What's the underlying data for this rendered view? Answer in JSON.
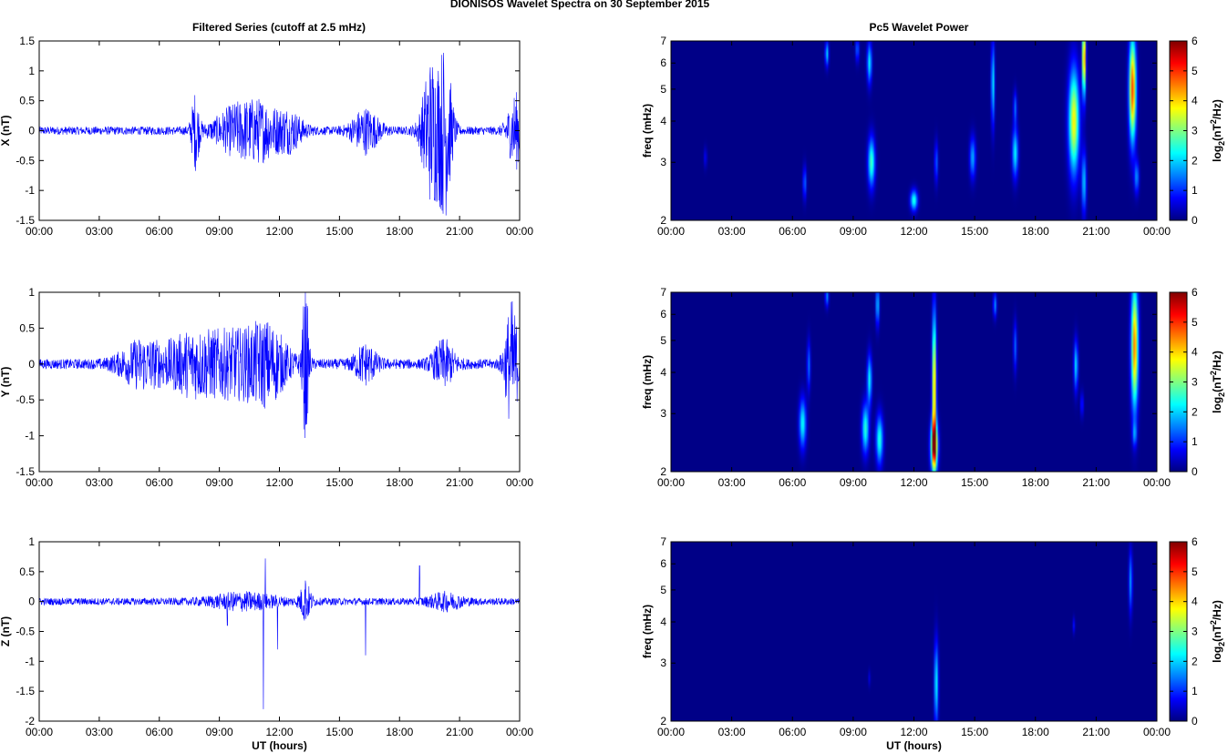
{
  "figure": {
    "title": "DIONISOS Wavelet Spectra on 30 September 2015",
    "left_column_title": "Filtered Series (cutoff at 2.5 mHz)",
    "right_column_title": "Pc5 Wavelet Power",
    "xlabel": "UT (hours)"
  },
  "chart_data": [
    {
      "type": "line",
      "panel": "X",
      "ylabel": "X (nT)",
      "xlabel": "",
      "x_ticks": [
        "00:00",
        "03:00",
        "06:00",
        "09:00",
        "12:00",
        "15:00",
        "18:00",
        "21:00",
        "00:00"
      ],
      "x_range_hours": [
        0,
        24
      ],
      "ylim": [
        -1.5,
        1.5
      ],
      "y_ticks": [
        "1.5",
        "1",
        "0.5",
        "0",
        "-0.5",
        "-1",
        "-1.5"
      ],
      "series_color": "#0000ff",
      "base_amplitude": 0.07,
      "bursts": [
        [
          7.8,
          0.15,
          0.6
        ],
        [
          9.9,
          0.8,
          0.4
        ],
        [
          11.2,
          0.6,
          0.35
        ],
        [
          12.5,
          0.5,
          0.3
        ],
        [
          16.3,
          0.5,
          0.35
        ],
        [
          19.6,
          0.35,
          1.2
        ],
        [
          20.3,
          0.25,
          1.25
        ],
        [
          23.8,
          0.3,
          0.6
        ]
      ]
    },
    {
      "type": "line",
      "panel": "Y",
      "ylabel": "Y (nT)",
      "xlabel": "",
      "x_ticks": [
        "00:00",
        "03:00",
        "06:00",
        "09:00",
        "12:00",
        "15:00",
        "18:00",
        "21:00",
        "00:00"
      ],
      "x_range_hours": [
        0,
        24
      ],
      "ylim": [
        -1.5,
        1
      ],
      "y_ticks": [
        "1",
        "0.5",
        "0",
        "-0.5",
        "-1",
        "-1.5"
      ],
      "series_color": "#0000ff",
      "base_amplitude": 0.07,
      "bursts": [
        [
          5.1,
          0.8,
          0.3
        ],
        [
          7.5,
          1.0,
          0.35
        ],
        [
          9.8,
          1.2,
          0.4
        ],
        [
          11.5,
          0.7,
          0.4
        ],
        [
          13.3,
          0.12,
          1.05
        ],
        [
          16.3,
          0.4,
          0.25
        ],
        [
          20.2,
          0.4,
          0.3
        ],
        [
          23.6,
          0.25,
          0.85
        ]
      ]
    },
    {
      "type": "line",
      "panel": "Z",
      "ylabel": "Z (nT)",
      "xlabel": "UT (hours)",
      "x_ticks": [
        "00:00",
        "03:00",
        "06:00",
        "09:00",
        "12:00",
        "15:00",
        "18:00",
        "21:00",
        "00:00"
      ],
      "x_range_hours": [
        0,
        24
      ],
      "ylim": [
        -2,
        1
      ],
      "y_ticks": [
        "1",
        "0.5",
        "0",
        "-0.5",
        "-1",
        "-1.5",
        "-2"
      ],
      "series_color": "#0000ff",
      "base_amplitude": 0.06,
      "bursts": [
        [
          10.2,
          1.2,
          0.12
        ],
        [
          13.3,
          0.2,
          0.3
        ],
        [
          20.3,
          0.6,
          0.12
        ]
      ],
      "spikes": [
        [
          11.2,
          -1.8
        ],
        [
          11.3,
          0.72
        ],
        [
          11.9,
          -0.8
        ],
        [
          9.4,
          -0.4
        ],
        [
          16.3,
          -0.9
        ],
        [
          19.0,
          0.6
        ],
        [
          13.3,
          0.35
        ]
      ]
    },
    {
      "type": "heatmap",
      "panel": "X",
      "ylabel": "freq (mHz)",
      "xlabel": "",
      "x_ticks": [
        "00:00",
        "03:00",
        "06:00",
        "09:00",
        "12:00",
        "15:00",
        "18:00",
        "21:00",
        "00:00"
      ],
      "y_scale": "log",
      "ylim": [
        2,
        7
      ],
      "y_ticks": [
        "7",
        "6",
        "5",
        "4",
        "3",
        "2"
      ],
      "colorbar_label": "log2(nT^2/Hz)",
      "colorbar_ticks": [
        "6",
        "5",
        "4",
        "3",
        "2",
        "1",
        "0"
      ],
      "clim": [
        0,
        6
      ],
      "blobs": [
        [
          6.6,
          0.06,
          2.6,
          0.08,
          1.6
        ],
        [
          7.7,
          0.06,
          6.4,
          0.06,
          2.3
        ],
        [
          9.2,
          0.06,
          6.6,
          0.06,
          1.6
        ],
        [
          9.9,
          0.12,
          3.0,
          0.12,
          3.0
        ],
        [
          9.8,
          0.08,
          6.0,
          0.1,
          2.5
        ],
        [
          12.0,
          0.12,
          2.3,
          0.05,
          2.8
        ],
        [
          13.1,
          0.06,
          3.0,
          0.1,
          1.5
        ],
        [
          14.9,
          0.1,
          3.1,
          0.1,
          2.0
        ],
        [
          15.9,
          0.06,
          5.2,
          0.2,
          2.5
        ],
        [
          17.0,
          0.1,
          3.2,
          0.12,
          2.5
        ],
        [
          17.0,
          0.06,
          4.4,
          0.08,
          1.5
        ],
        [
          19.9,
          0.18,
          4.0,
          0.25,
          4.3
        ],
        [
          20.4,
          0.06,
          6.2,
          0.18,
          5.5
        ],
        [
          20.4,
          0.08,
          2.6,
          0.15,
          2.2
        ],
        [
          22.8,
          0.12,
          5.0,
          0.25,
          5.6
        ],
        [
          23.0,
          0.08,
          2.7,
          0.08,
          1.8
        ],
        [
          1.7,
          0.05,
          3.1,
          0.05,
          0.8
        ]
      ]
    },
    {
      "type": "heatmap",
      "panel": "Y",
      "ylabel": "freq (mHz)",
      "xlabel": "",
      "x_ticks": [
        "00:00",
        "03:00",
        "06:00",
        "09:00",
        "12:00",
        "15:00",
        "18:00",
        "21:00",
        "00:00"
      ],
      "y_scale": "log",
      "ylim": [
        2,
        7
      ],
      "y_ticks": [
        "7",
        "6",
        "5",
        "4",
        "3",
        "2"
      ],
      "colorbar_label": "log2(nT^2/Hz)",
      "colorbar_ticks": [
        "6",
        "5",
        "4",
        "3",
        "2",
        "1",
        "0"
      ],
      "clim": [
        0,
        6
      ],
      "blobs": [
        [
          6.5,
          0.12,
          2.8,
          0.12,
          2.6
        ],
        [
          6.8,
          0.06,
          4.2,
          0.12,
          1.6
        ],
        [
          7.7,
          0.06,
          6.8,
          0.05,
          1.8
        ],
        [
          9.6,
          0.12,
          2.7,
          0.12,
          2.8
        ],
        [
          9.8,
          0.08,
          3.8,
          0.12,
          2.6
        ],
        [
          10.3,
          0.12,
          2.5,
          0.12,
          2.8
        ],
        [
          10.2,
          0.06,
          6.4,
          0.1,
          2.3
        ],
        [
          13.0,
          0.12,
          2.4,
          0.12,
          5.7
        ],
        [
          13.0,
          0.07,
          3.6,
          0.35,
          5.0
        ],
        [
          16.0,
          0.06,
          6.4,
          0.06,
          1.8
        ],
        [
          17.0,
          0.06,
          4.8,
          0.12,
          1.5
        ],
        [
          20.0,
          0.07,
          4.2,
          0.12,
          2.4
        ],
        [
          20.3,
          0.05,
          3.2,
          0.06,
          1.2
        ],
        [
          22.9,
          0.12,
          4.8,
          0.3,
          5.2
        ],
        [
          22.9,
          0.07,
          2.6,
          0.06,
          1.5
        ]
      ]
    },
    {
      "type": "heatmap",
      "panel": "Z",
      "ylabel": "freq (mHz)",
      "xlabel": "UT (hours)",
      "x_ticks": [
        "00:00",
        "03:00",
        "06:00",
        "09:00",
        "12:00",
        "15:00",
        "18:00",
        "21:00",
        "00:00"
      ],
      "y_scale": "log",
      "ylim": [
        2,
        7
      ],
      "y_ticks": [
        "7",
        "6",
        "5",
        "4",
        "3",
        "2"
      ],
      "colorbar_label": "log2(nT^2/Hz)",
      "colorbar_ticks": [
        "6",
        "5",
        "4",
        "3",
        "2",
        "1",
        "0"
      ],
      "clim": [
        0,
        6
      ],
      "blobs": [
        [
          13.1,
          0.07,
          2.6,
          0.2,
          2.6
        ],
        [
          22.7,
          0.06,
          5.3,
          0.15,
          1.9
        ],
        [
          19.9,
          0.04,
          3.9,
          0.04,
          0.9
        ],
        [
          9.8,
          0.04,
          2.7,
          0.04,
          0.6
        ]
      ]
    }
  ]
}
